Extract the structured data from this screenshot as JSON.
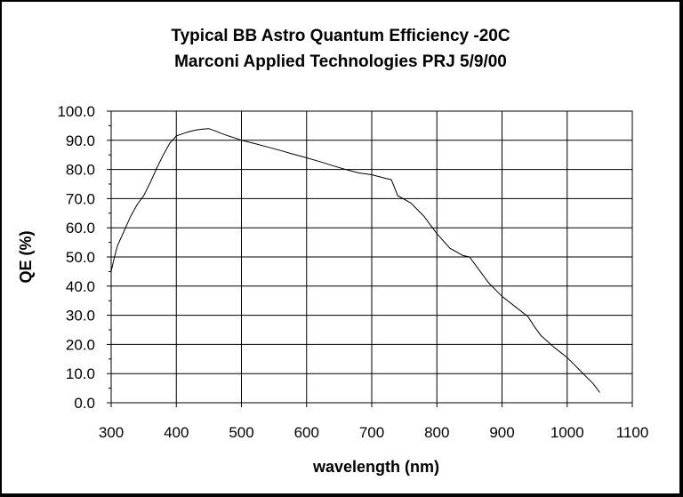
{
  "chart_data": {
    "type": "line",
    "title": "Typical BB Astro Quantum Efficiency -20C",
    "subtitle": "Marconi Applied Technologies  PRJ 5/9/00",
    "xlabel": "wavelength (nm)",
    "ylabel": "QE (%)",
    "xlim": [
      300,
      1100
    ],
    "ylim": [
      0,
      100
    ],
    "x_ticks": [
      "300",
      "400",
      "500",
      "600",
      "700",
      "800",
      "900",
      "1000",
      "1100"
    ],
    "y_ticks": [
      "0.0",
      "10.0",
      "20.0",
      "30.0",
      "40.0",
      "50.0",
      "60.0",
      "70.0",
      "80.0",
      "90.0",
      "100.0"
    ],
    "grid": true,
    "legend": "none",
    "line_color": "#000000",
    "series": [
      {
        "x": [
          300,
          305,
          310,
          320,
          330,
          340,
          350,
          360,
          370,
          380,
          390,
          400,
          410,
          420,
          430,
          440,
          450,
          460,
          470,
          480,
          490,
          500,
          520,
          540,
          560,
          580,
          600,
          620,
          640,
          660,
          680,
          700,
          720,
          730,
          740,
          760,
          780,
          800,
          820,
          840,
          850,
          860,
          880,
          900,
          920,
          940,
          950,
          960,
          980,
          1000,
          1020,
          1040,
          1050
        ],
        "y": [
          45,
          50,
          54,
          59,
          64,
          68,
          71,
          75.5,
          80.5,
          85,
          89,
          91.5,
          92.3,
          93,
          93.5,
          93.8,
          94,
          93.2,
          92.3,
          91.5,
          90.8,
          90,
          88.9,
          87.7,
          86.5,
          85.2,
          84,
          82.7,
          81.3,
          80,
          78.8,
          78.2,
          77,
          76.5,
          71,
          68.5,
          64,
          58,
          53,
          50.5,
          50,
          47,
          41,
          36.5,
          33,
          29.5,
          26,
          23,
          19,
          15.5,
          11,
          6.5,
          3.5
        ]
      }
    ]
  }
}
